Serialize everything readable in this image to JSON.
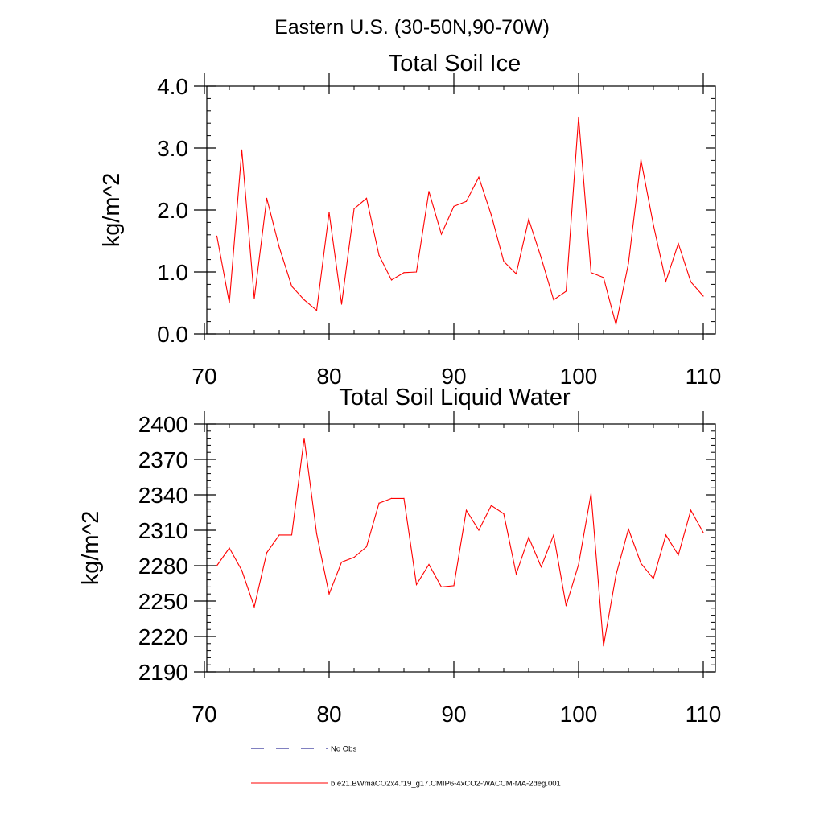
{
  "figure": {
    "title": "Eastern U.S. (30-50N,90-70W)"
  },
  "colors": {
    "model_line": "#ff0000",
    "obs_line": "#000080",
    "axis": "#000000"
  },
  "chart_data": [
    {
      "type": "line",
      "title": "Total Soil Ice",
      "xlabel": "",
      "ylabel": "kg/m^2",
      "xlim": [
        70,
        110
      ],
      "ylim": [
        0,
        4
      ],
      "xticks": [
        "70",
        "80",
        "90",
        "100",
        "110"
      ],
      "yticks": [
        "0.0",
        "1.0",
        "2.0",
        "3.0",
        "4.0"
      ],
      "grid": false,
      "series": [
        {
          "name": "b.e21.BWmaCO2x4.f19_g17.CMIP6-4xCO2-WACCM-MA-2deg.001",
          "x": [
            71,
            72,
            73,
            74,
            75,
            76,
            77,
            78,
            79,
            80,
            81,
            82,
            83,
            84,
            85,
            86,
            87,
            88,
            89,
            90,
            91,
            92,
            93,
            94,
            95,
            96,
            97,
            98,
            99,
            100,
            101,
            102,
            103,
            104,
            105,
            106,
            107,
            108,
            109,
            110
          ],
          "values": [
            1.58,
            0.5,
            2.97,
            0.57,
            2.19,
            1.4,
            0.77,
            0.55,
            0.38,
            1.96,
            0.48,
            2.02,
            2.19,
            1.27,
            0.87,
            0.99,
            1.0,
            2.3,
            1.61,
            2.06,
            2.14,
            2.53,
            1.92,
            1.17,
            0.97,
            1.85,
            1.23,
            0.55,
            0.69,
            3.5,
            0.99,
            0.91,
            0.15,
            1.14,
            2.81,
            1.76,
            0.85,
            1.46,
            0.84,
            0.61
          ]
        }
      ]
    },
    {
      "type": "line",
      "title": "Total Soil Liquid Water",
      "xlabel": "",
      "ylabel": "kg/m^2",
      "xlim": [
        70,
        110
      ],
      "ylim": [
        2190,
        2400
      ],
      "xticks": [
        "70",
        "80",
        "90",
        "100",
        "110"
      ],
      "yticks": [
        "2190",
        "2220",
        "2250",
        "2280",
        "2310",
        "2340",
        "2370",
        "2400"
      ],
      "grid": false,
      "series": [
        {
          "name": "b.e21.BWmaCO2x4.f19_g17.CMIP6-4xCO2-WACCM-MA-2deg.001",
          "x": [
            71,
            72,
            73,
            74,
            75,
            76,
            77,
            78,
            79,
            80,
            81,
            82,
            83,
            84,
            85,
            86,
            87,
            88,
            89,
            90,
            91,
            92,
            93,
            94,
            95,
            96,
            97,
            98,
            99,
            100,
            101,
            102,
            103,
            104,
            105,
            106,
            107,
            108,
            109,
            110
          ],
          "values": [
            2280,
            2295,
            2276,
            2245,
            2291,
            2306,
            2306,
            2388,
            2307,
            2256,
            2283,
            2287,
            2296,
            2333,
            2337,
            2337,
            2264,
            2281,
            2262,
            2263,
            2327,
            2310,
            2331,
            2324,
            2273,
            2304,
            2279,
            2306,
            2246,
            2281,
            2341,
            2212,
            2272,
            2311,
            2282,
            2269,
            2306,
            2289,
            2327,
            2308
          ]
        }
      ]
    }
  ],
  "legend": {
    "placement": "bottom",
    "entries": [
      {
        "label": "No Obs",
        "style": "dashed",
        "color": "#000080"
      },
      {
        "label": "b.e21.BWmaCO2x4.f19_g17.CMIP6-4xCO2-WACCM-MA-2deg.001",
        "style": "solid",
        "color": "#ff0000"
      }
    ]
  }
}
